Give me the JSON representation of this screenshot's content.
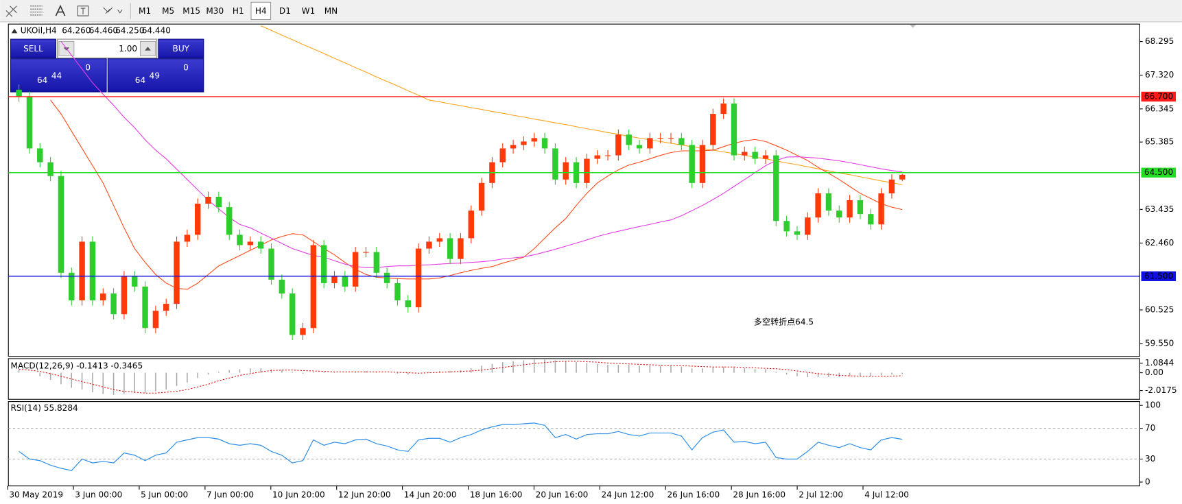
{
  "toolbar": {
    "timeframes": [
      "M1",
      "M5",
      "M15",
      "M30",
      "H1",
      "H4",
      "D1",
      "W1",
      "MN"
    ],
    "active": "H4"
  },
  "trade_panel": {
    "sell_label": "SELL",
    "buy_label": "BUY",
    "lot": "1.00",
    "sell_price": {
      "big": "64",
      "main": "44",
      "small": "0"
    },
    "buy_price": {
      "big": "64",
      "main": "49",
      "small": "0"
    }
  },
  "chart_data": [
    {
      "type": "candlestick",
      "title": "UKOil,H4",
      "header_values": [
        "64.260",
        "64.460",
        "64.250",
        "64.440"
      ],
      "up_color": "#ff3a0a",
      "down_color": "#2fcc2f",
      "candles": [
        [
          66.9,
          67.05,
          66.55,
          66.7
        ],
        [
          66.7,
          66.85,
          65.05,
          65.2
        ],
        [
          65.2,
          65.35,
          64.65,
          64.8
        ],
        [
          64.8,
          64.95,
          64.25,
          64.4
        ],
        [
          64.4,
          64.55,
          61.45,
          61.6
        ],
        [
          61.6,
          61.75,
          60.65,
          60.8
        ],
        [
          60.8,
          62.65,
          60.65,
          62.5
        ],
        [
          62.5,
          62.65,
          60.65,
          60.8
        ],
        [
          60.8,
          61.15,
          60.65,
          61.0
        ],
        [
          61.0,
          61.15,
          60.25,
          60.4
        ],
        [
          60.4,
          61.65,
          60.25,
          61.5
        ],
        [
          61.5,
          61.65,
          61.05,
          61.2
        ],
        [
          61.2,
          61.35,
          59.85,
          60.0
        ],
        [
          60.0,
          60.65,
          59.85,
          60.5
        ],
        [
          60.5,
          60.85,
          60.35,
          60.7
        ],
        [
          60.7,
          62.65,
          60.55,
          62.5
        ],
        [
          62.5,
          62.85,
          62.35,
          62.7
        ],
        [
          62.7,
          63.75,
          62.55,
          63.6
        ],
        [
          63.6,
          63.95,
          63.45,
          63.8
        ],
        [
          63.8,
          63.95,
          63.35,
          63.5
        ],
        [
          63.5,
          63.65,
          62.55,
          62.7
        ],
        [
          62.7,
          62.85,
          62.25,
          62.4
        ],
        [
          62.4,
          62.65,
          62.25,
          62.5
        ],
        [
          62.5,
          62.65,
          62.15,
          62.3
        ],
        [
          62.3,
          62.45,
          61.25,
          61.4
        ],
        [
          61.4,
          61.55,
          60.85,
          61.0
        ],
        [
          61.0,
          61.15,
          59.65,
          59.8
        ],
        [
          59.8,
          60.15,
          59.65,
          60.0
        ],
        [
          60.0,
          62.55,
          59.85,
          62.4
        ],
        [
          62.4,
          62.55,
          61.15,
          61.3
        ],
        [
          61.3,
          61.65,
          61.15,
          61.5
        ],
        [
          61.5,
          61.65,
          61.05,
          61.2
        ],
        [
          61.2,
          62.35,
          61.05,
          62.2
        ],
        [
          62.2,
          62.35,
          62.05,
          62.2
        ],
        [
          62.2,
          62.35,
          61.45,
          61.6
        ],
        [
          61.6,
          61.75,
          61.15,
          61.3
        ],
        [
          61.3,
          61.45,
          60.65,
          60.8
        ],
        [
          60.8,
          60.95,
          60.45,
          60.6
        ],
        [
          60.6,
          62.45,
          60.45,
          62.3
        ],
        [
          62.3,
          62.65,
          62.15,
          62.5
        ],
        [
          62.5,
          62.75,
          62.35,
          62.6
        ],
        [
          62.6,
          62.75,
          61.85,
          62.0
        ],
        [
          62.0,
          62.75,
          61.85,
          62.6
        ],
        [
          62.6,
          63.55,
          62.45,
          63.4
        ],
        [
          63.4,
          64.35,
          63.25,
          64.2
        ],
        [
          64.2,
          64.95,
          64.05,
          64.8
        ],
        [
          64.8,
          65.35,
          64.65,
          65.2
        ],
        [
          65.2,
          65.45,
          65.05,
          65.3
        ],
        [
          65.3,
          65.55,
          65.15,
          65.4
        ],
        [
          65.4,
          65.65,
          65.25,
          65.5
        ],
        [
          65.5,
          65.65,
          65.05,
          65.2
        ],
        [
          65.2,
          65.35,
          64.15,
          64.3
        ],
        [
          64.3,
          64.95,
          64.15,
          64.8
        ],
        [
          64.8,
          64.95,
          64.05,
          64.2
        ],
        [
          64.2,
          65.05,
          64.05,
          64.9
        ],
        [
          64.9,
          65.15,
          64.75,
          65.0
        ],
        [
          65.0,
          65.15,
          64.85,
          65.0
        ],
        [
          65.0,
          65.75,
          64.85,
          65.6
        ],
        [
          65.6,
          65.75,
          65.15,
          65.3
        ],
        [
          65.3,
          65.45,
          65.05,
          65.2
        ],
        [
          65.2,
          65.65,
          65.05,
          65.5
        ],
        [
          65.5,
          65.65,
          65.35,
          65.5
        ],
        [
          65.5,
          65.65,
          65.35,
          65.5
        ],
        [
          65.5,
          65.65,
          65.15,
          65.3
        ],
        [
          65.3,
          65.45,
          64.05,
          64.2
        ],
        [
          64.2,
          65.45,
          64.05,
          65.3
        ],
        [
          65.3,
          66.35,
          65.15,
          66.2
        ],
        [
          66.2,
          66.65,
          66.05,
          66.5
        ],
        [
          66.5,
          66.65,
          64.85,
          65.0
        ],
        [
          65.0,
          65.25,
          64.85,
          65.1
        ],
        [
          65.1,
          65.25,
          64.75,
          64.9
        ],
        [
          64.9,
          65.15,
          64.75,
          65.0
        ],
        [
          65.0,
          65.15,
          62.95,
          63.1
        ],
        [
          63.1,
          63.25,
          62.65,
          62.8
        ],
        [
          62.8,
          62.95,
          62.55,
          62.7
        ],
        [
          62.7,
          63.35,
          62.55,
          63.2
        ],
        [
          63.2,
          64.05,
          63.05,
          63.9
        ],
        [
          63.9,
          64.05,
          63.25,
          63.4
        ],
        [
          63.4,
          63.55,
          63.05,
          63.2
        ],
        [
          63.2,
          63.85,
          63.05,
          63.7
        ],
        [
          63.7,
          63.85,
          63.15,
          63.3
        ],
        [
          63.3,
          63.45,
          62.85,
          63.0
        ],
        [
          63.0,
          64.05,
          62.85,
          63.9
        ],
        [
          63.9,
          64.45,
          63.75,
          64.3
        ],
        [
          64.3,
          64.46,
          64.25,
          64.44
        ]
      ],
      "series": [
        {
          "color": "#ffa31a",
          "values": [
            null,
            null,
            null,
            null,
            null,
            null,
            null,
            null,
            null,
            null,
            null,
            null,
            null,
            null,
            null,
            null,
            null,
            null,
            null,
            null,
            null,
            null,
            null,
            68.75,
            68.62,
            68.48,
            68.35,
            68.21,
            68.08,
            67.95,
            67.81,
            67.68,
            67.54,
            67.41,
            67.27,
            67.14,
            67.01,
            66.87,
            66.74,
            66.6,
            66.55,
            66.49,
            66.44,
            66.38,
            66.33,
            66.27,
            66.22,
            66.16,
            66.11,
            66.05,
            66.0,
            65.94,
            65.89,
            65.83,
            65.77,
            65.72,
            65.66,
            65.61,
            65.55,
            65.5,
            65.45,
            65.4,
            65.35,
            65.3,
            65.25,
            65.2,
            65.15,
            65.1,
            65.05,
            65.0,
            64.95,
            64.9,
            64.84,
            64.78,
            64.73,
            64.67,
            64.61,
            64.55,
            64.49,
            64.44,
            64.38,
            64.32,
            64.26,
            64.21,
            64.15
          ]
        },
        {
          "color": "#ff4a1a",
          "values": [
            null,
            null,
            null,
            66.6,
            66.2,
            65.7,
            65.2,
            64.7,
            64.2,
            63.55,
            62.9,
            62.3,
            61.9,
            61.55,
            61.3,
            61.15,
            61.12,
            61.3,
            61.55,
            61.8,
            61.95,
            62.1,
            62.25,
            62.4,
            62.55,
            62.65,
            62.73,
            62.7,
            62.5,
            62.3,
            62.12,
            61.9,
            61.7,
            61.55,
            61.47,
            61.45,
            61.43,
            61.42,
            61.42,
            61.42,
            61.45,
            61.52,
            61.6,
            61.67,
            61.73,
            61.78,
            61.88,
            61.96,
            62.05,
            62.3,
            62.6,
            62.9,
            63.17,
            63.55,
            63.9,
            64.2,
            64.4,
            64.58,
            64.72,
            64.8,
            64.9,
            65.0,
            65.08,
            65.13,
            65.13,
            65.13,
            65.15,
            65.25,
            65.35,
            65.42,
            65.46,
            65.4,
            65.28,
            65.15,
            65.0,
            64.85,
            64.65,
            64.48,
            64.3,
            64.1,
            63.9,
            63.75,
            63.6,
            63.5,
            63.43
          ]
        },
        {
          "color": "#e33de3",
          "values": [
            null,
            null,
            null,
            null,
            68.3,
            67.9,
            67.5,
            67.1,
            66.77,
            66.45,
            66.1,
            65.8,
            65.45,
            65.15,
            64.9,
            64.6,
            64.3,
            64.0,
            63.7,
            63.45,
            63.2,
            63.0,
            62.9,
            62.75,
            62.6,
            62.45,
            62.3,
            62.2,
            62.1,
            62.05,
            61.95,
            61.85,
            61.78,
            61.75,
            61.75,
            61.78,
            61.8,
            61.8,
            61.82,
            61.83,
            61.85,
            61.87,
            61.88,
            61.9,
            61.92,
            61.95,
            62.0,
            62.03,
            62.06,
            62.12,
            62.2,
            62.28,
            62.37,
            62.46,
            62.55,
            62.65,
            62.73,
            62.8,
            62.87,
            62.94,
            63.0,
            63.07,
            63.13,
            63.25,
            63.4,
            63.55,
            63.72,
            63.9,
            64.1,
            64.3,
            64.5,
            64.7,
            64.85,
            64.95,
            64.96,
            64.94,
            64.92,
            64.88,
            64.84,
            64.79,
            64.73,
            64.67,
            64.61,
            64.56,
            64.52
          ]
        }
      ],
      "price_lines": [
        {
          "value": 66.7,
          "label": "66.700",
          "color": "#ff1a1a"
        },
        {
          "value": 64.5,
          "label": "64.500",
          "color": "#22dd22"
        },
        {
          "value": 61.5,
          "label": "61.500",
          "color": "#1010e0"
        }
      ],
      "ylim": [
        59.18,
        68.8
      ],
      "yticks": [
        68.295,
        {
          "value": 67.32,
          "label": "67.320"
        },
        66.345,
        65.385,
        63.435,
        {
          "value": 62.46,
          "label": "62.460"
        },
        60.525,
        {
          "value": 59.55,
          "label": "59.550"
        }
      ],
      "xtick_labels": [
        "30 May 2019",
        "3 Jun 00:00",
        "5 Jun 00:00",
        "7 Jun 00:00",
        "10 Jun 20:00",
        "12 Jun 20:00",
        "14 Jun 20:00",
        "18 Jun 16:00",
        "20 Jun 16:00",
        "24 Jun 12:00",
        "26 Jun 16:00",
        "28 Jun 16:00",
        "2 Jul 12:00",
        "4 Jul 12:00"
      ],
      "annotation": "多空转折点64.5",
      "annotation_color": "#ff1a1a"
    },
    {
      "type": "macd",
      "title": "MACD(12,26,9) -0.1413 -0.3465",
      "color": "#a8a8a8",
      "signal_color": "#e01010",
      "values": [
        0.3,
        0.0,
        -0.4,
        -0.8,
        -1.3,
        -1.7,
        -1.9,
        -2.2,
        -2.4,
        -2.5,
        -2.4,
        -2.3,
        -2.3,
        -2.1,
        -1.9,
        -1.5,
        -1.1,
        -0.6,
        -0.2,
        0.1,
        0.3,
        0.4,
        0.5,
        0.5,
        0.4,
        0.3,
        0.1,
        -0.1,
        0.1,
        0.1,
        0.1,
        0.0,
        0.1,
        0.2,
        0.1,
        0.0,
        -0.1,
        -0.2,
        0.0,
        0.1,
        0.2,
        0.2,
        0.3,
        0.5,
        0.8,
        1.0,
        1.2,
        1.3,
        1.4,
        1.5,
        1.5,
        1.4,
        1.3,
        1.2,
        1.1,
        1.0,
        0.9,
        0.9,
        0.9,
        0.8,
        0.8,
        0.8,
        0.8,
        0.7,
        0.5,
        0.5,
        0.6,
        0.7,
        0.6,
        0.5,
        0.4,
        0.4,
        0.1,
        -0.2,
        -0.4,
        -0.5,
        -0.5,
        -0.5,
        -0.5,
        -0.4,
        -0.4,
        -0.4,
        -0.3,
        -0.2,
        -0.1413
      ],
      "signal": [
        0.4,
        0.3,
        0.15,
        -0.1,
        -0.4,
        -0.7,
        -1.0,
        -1.3,
        -1.6,
        -1.9,
        -2.1,
        -2.2,
        -2.3,
        -2.3,
        -2.2,
        -2.1,
        -1.9,
        -1.6,
        -1.3,
        -0.9,
        -0.6,
        -0.3,
        -0.1,
        0.1,
        0.25,
        0.3,
        0.3,
        0.25,
        0.2,
        0.15,
        0.1,
        0.1,
        0.1,
        0.1,
        0.1,
        0.1,
        0.05,
        0.0,
        -0.05,
        0.0,
        0.05,
        0.1,
        0.15,
        0.2,
        0.3,
        0.45,
        0.6,
        0.75,
        0.9,
        1.05,
        1.15,
        1.25,
        1.3,
        1.3,
        1.25,
        1.2,
        1.1,
        1.05,
        1.0,
        0.95,
        0.9,
        0.85,
        0.8,
        0.8,
        0.75,
        0.7,
        0.65,
        0.65,
        0.65,
        0.6,
        0.55,
        0.5,
        0.45,
        0.35,
        0.2,
        0.05,
        -0.1,
        -0.2,
        -0.3,
        -0.35,
        -0.38,
        -0.4,
        -0.4,
        -0.38,
        -0.3465
      ],
      "ylim": [
        -3.0,
        1.6
      ],
      "yticks": [
        1.0844,
        {
          "value": 0,
          "label": "0.00"
        },
        -2.0175
      ]
    },
    {
      "type": "line",
      "title": "RSI(14) 55.8284",
      "color": "#2f8fe8",
      "values": [
        40,
        30,
        28,
        22,
        18,
        15,
        30,
        25,
        27,
        25,
        38,
        35,
        28,
        35,
        38,
        52,
        55,
        58,
        58,
        56,
        50,
        48,
        50,
        48,
        40,
        35,
        25,
        28,
        55,
        48,
        52,
        50,
        55,
        56,
        50,
        47,
        42,
        40,
        55,
        57,
        57,
        52,
        58,
        62,
        68,
        72,
        75,
        75,
        76,
        77,
        74,
        58,
        62,
        56,
        62,
        63,
        63,
        66,
        62,
        60,
        64,
        64,
        64,
        60,
        42,
        58,
        65,
        68,
        52,
        53,
        50,
        52,
        32,
        30,
        30,
        40,
        52,
        48,
        45,
        50,
        45,
        42,
        55,
        58,
        55.8284
      ],
      "ylim": [
        -5,
        105
      ],
      "yticks": [
        100,
        70,
        30,
        0
      ],
      "levels": [
        70,
        30
      ]
    }
  ]
}
